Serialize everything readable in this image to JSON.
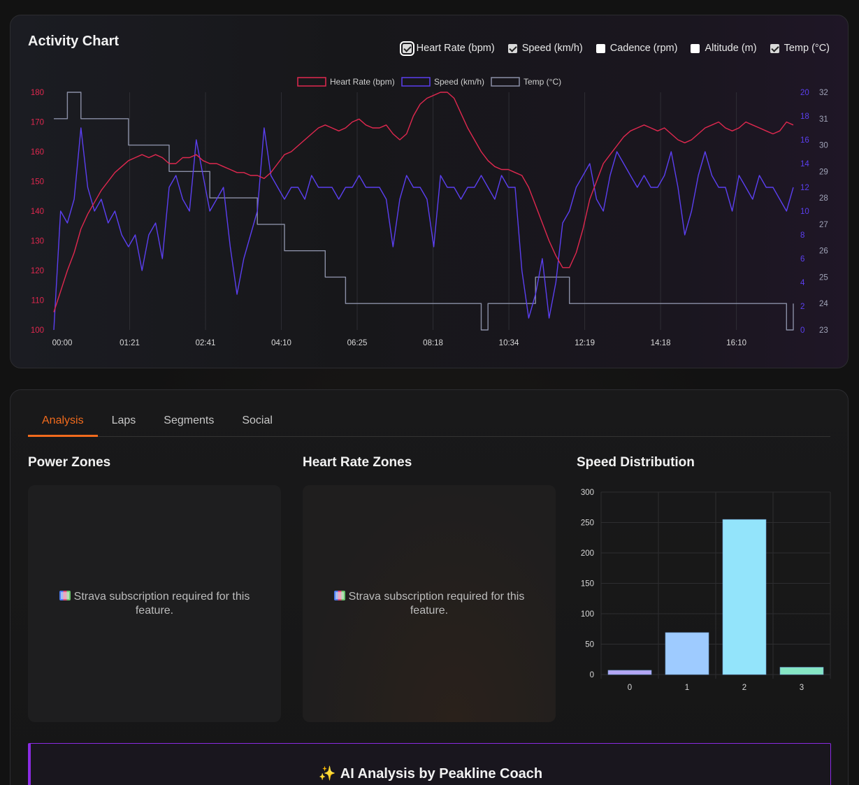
{
  "activity": {
    "title": "Activity Chart",
    "toggles": [
      {
        "label": "Heart Rate (bpm)",
        "checked": true
      },
      {
        "label": "Speed (km/h)",
        "checked": true
      },
      {
        "label": "Cadence (rpm)",
        "checked": false
      },
      {
        "label": "Altitude (m)",
        "checked": false
      },
      {
        "label": "Temp (°C)",
        "checked": true
      }
    ]
  },
  "tabs": [
    {
      "label": "Analysis",
      "active": true
    },
    {
      "label": "Laps",
      "active": false
    },
    {
      "label": "Segments",
      "active": false
    },
    {
      "label": "Social",
      "active": false
    }
  ],
  "sections": {
    "power_title": "Power Zones",
    "hr_title": "Heart Rate Zones",
    "speed_title": "Speed Distribution",
    "locked_message": "Strava subscription required for this feature.",
    "locked_icon": "bar-chart-icon"
  },
  "ai": {
    "title": "AI Analysis by Peakline Coach",
    "icon": "sparkles-icon"
  },
  "colors": {
    "hr": "#e0284f",
    "speed": "#5b3ff0",
    "temp": "#8a8fa6",
    "accent": "#f26b1d",
    "ai_border": "#8a2be2"
  },
  "chart_data": [
    {
      "type": "line",
      "legend": [
        "Heart Rate (bpm)",
        "Speed (km/h)",
        "Temp (°C)"
      ],
      "legend_position": "top-center",
      "x_tick_labels": [
        "00:00",
        "01:21",
        "02:41",
        "04:10",
        "06:25",
        "08:18",
        "10:34",
        "12:19",
        "14:18",
        "16:10"
      ],
      "y_left": {
        "label": "",
        "range": [
          100,
          180
        ],
        "ticks": [
          100,
          110,
          120,
          130,
          140,
          150,
          160,
          170,
          180
        ]
      },
      "y_right_speed": {
        "label": "",
        "range": [
          0,
          20
        ],
        "ticks": [
          0,
          2,
          4,
          6,
          8,
          10,
          12,
          14,
          16,
          18,
          20
        ]
      },
      "y_right_temp": {
        "label": "",
        "range": [
          23,
          32
        ],
        "ticks": [
          23,
          24,
          25,
          26,
          27,
          28,
          29,
          30,
          31,
          32
        ]
      },
      "grid": "vertical",
      "series": [
        {
          "name": "Heart Rate (bpm)",
          "values": [
            106,
            113,
            120,
            126,
            134,
            139,
            143,
            147,
            150,
            153,
            155,
            157,
            158,
            159,
            158,
            159,
            158,
            156,
            156,
            158,
            158,
            159,
            157,
            156,
            156,
            155,
            154,
            153,
            153,
            152,
            152,
            151,
            153,
            156,
            159,
            160,
            162,
            164,
            166,
            168,
            169,
            168,
            167,
            168,
            170,
            171,
            169,
            168,
            168,
            169,
            166,
            164,
            166,
            172,
            176,
            178,
            179,
            180,
            180,
            178,
            173,
            168,
            164,
            160,
            157,
            155,
            154,
            154,
            153,
            152,
            148,
            142,
            136,
            130,
            125,
            121,
            121,
            126,
            134,
            144,
            150,
            156,
            159,
            162,
            165,
            167,
            168,
            169,
            168,
            167,
            168,
            166,
            164,
            163,
            164,
            166,
            168,
            169,
            170,
            168,
            167,
            168,
            170,
            169,
            168,
            167,
            166,
            167,
            170,
            169
          ]
        },
        {
          "name": "Speed (km/h)",
          "values": [
            0,
            10,
            9,
            11,
            17,
            12,
            10,
            11,
            9,
            10,
            8,
            7,
            8,
            5,
            8,
            9,
            6,
            12,
            13,
            11,
            10,
            16,
            13,
            10,
            11,
            12,
            7,
            3,
            6,
            8,
            10,
            17,
            13,
            12,
            11,
            12,
            12,
            11,
            13,
            12,
            12,
            12,
            11,
            12,
            12,
            13,
            12,
            12,
            12,
            11,
            7,
            11,
            13,
            12,
            12,
            11,
            7,
            13,
            12,
            12,
            11,
            12,
            12,
            13,
            12,
            11,
            13,
            12,
            12,
            5,
            1,
            3,
            6,
            1,
            4,
            9,
            10,
            12,
            13,
            14,
            11,
            10,
            13,
            15,
            14,
            13,
            12,
            13,
            12,
            12,
            13,
            15,
            12,
            8,
            10,
            13,
            15,
            13,
            12,
            12,
            10,
            13,
            12,
            11,
            13,
            12,
            12,
            11,
            10,
            12
          ]
        },
        {
          "name": "Temp (°C)",
          "values": [
            31,
            31,
            32,
            32,
            31,
            31,
            31,
            31,
            31,
            31,
            31,
            30,
            30,
            30,
            30,
            30,
            30,
            29,
            29,
            29,
            29,
            29,
            29,
            28,
            28,
            28,
            28,
            28,
            28,
            28,
            27,
            27,
            27,
            27,
            26,
            26,
            26,
            26,
            26,
            26,
            25,
            25,
            25,
            24,
            24,
            24,
            24,
            24,
            24,
            24,
            24,
            24,
            24,
            24,
            24,
            24,
            24,
            24,
            24,
            24,
            24,
            24,
            24,
            23,
            24,
            24,
            24,
            24,
            24,
            24,
            24,
            25,
            25,
            25,
            25,
            25,
            24,
            24,
            24,
            24,
            24,
            24,
            24,
            24,
            24,
            24,
            24,
            24,
            24,
            24,
            24,
            24,
            24,
            24,
            24,
            24,
            24,
            24,
            24,
            24,
            24,
            24,
            24,
            24,
            24,
            24,
            24,
            24,
            23,
            24
          ]
        }
      ]
    },
    {
      "type": "bar",
      "title": "Speed Distribution",
      "categories": [
        "0",
        "1",
        "2",
        "3"
      ],
      "values": [
        7,
        69,
        255,
        12
      ],
      "colors": [
        "#b4a7f5",
        "#9ecbff",
        "#93e4fb",
        "#86e6c4"
      ],
      "ylim": [
        0,
        300
      ],
      "yticks": [
        0,
        50,
        100,
        150,
        200,
        250,
        300
      ]
    }
  ]
}
